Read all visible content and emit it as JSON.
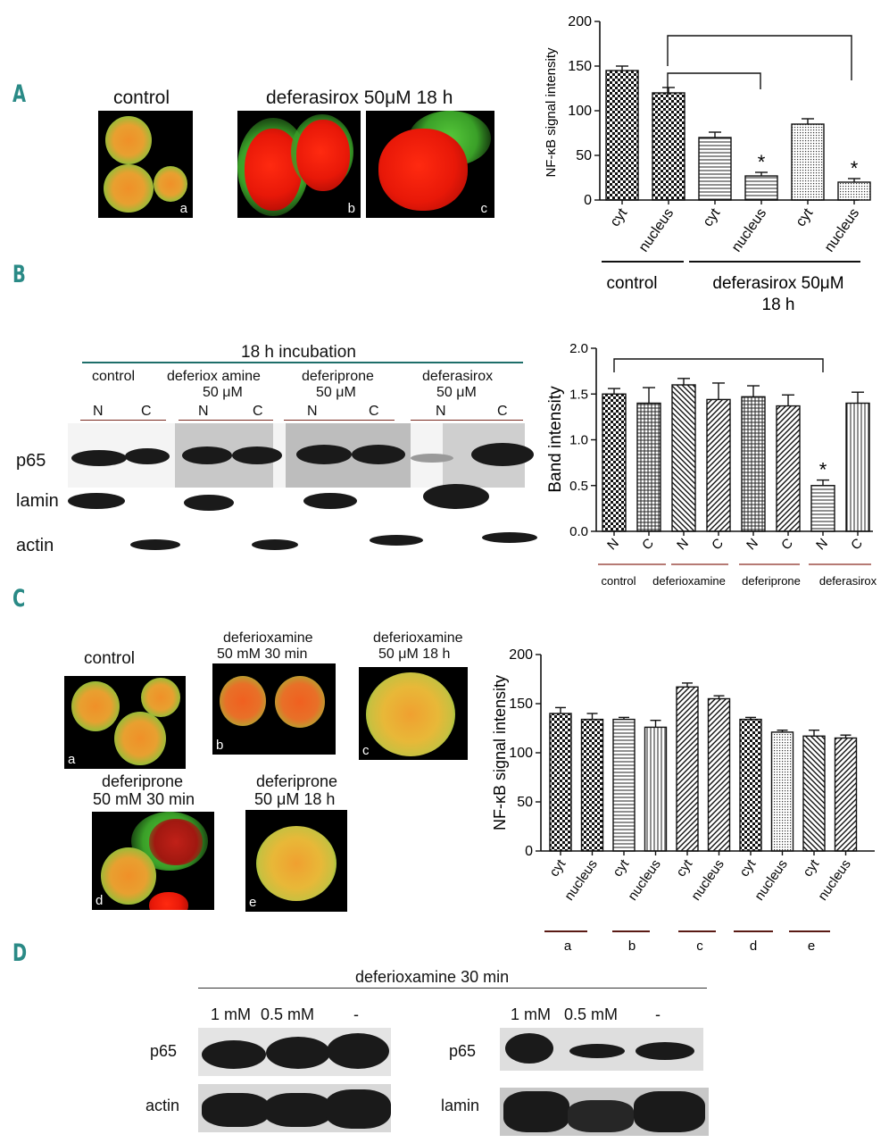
{
  "panels": {
    "a": "A",
    "b": "B",
    "c": "C",
    "d": "D"
  },
  "A": {
    "control_title": "control",
    "treat_title": "deferasirox 50μM 18 h",
    "letters": [
      "a",
      "b",
      "c"
    ],
    "group_control": "control",
    "group_treat_line1": "deferasirox 50μM",
    "group_treat_line2": "18 h"
  },
  "B": {
    "header": "18 h incubation",
    "groups": [
      {
        "line1": "control",
        "line2": ""
      },
      {
        "line1": "deferiox amine",
        "line2": "50 μM"
      },
      {
        "line1": "deferiprone",
        "line2": "50 μM"
      },
      {
        "line1": "deferasirox",
        "line2": "50 μM"
      }
    ],
    "lanes": [
      "N",
      "C",
      "N",
      "C",
      "N",
      "C",
      "N",
      "C"
    ],
    "rows": [
      "p65",
      "lamin",
      "actin"
    ],
    "group_labels": [
      "control",
      "deferioxamine",
      "deferiprone",
      "deferasirox"
    ]
  },
  "C": {
    "titles": {
      "a": {
        "line1": "control",
        "line2": ""
      },
      "b": {
        "line1": "deferioxamine",
        "line2": "50 mM 30 min"
      },
      "c": {
        "line1": "deferioxamine",
        "line2": "50 μM 18 h"
      },
      "d": {
        "line1": "deferiprone",
        "line2": "50 mM 30 min"
      },
      "e": {
        "line1": "deferiprone",
        "line2": "50 μM 18 h"
      }
    },
    "letters": [
      "a",
      "b",
      "c",
      "d",
      "e"
    ]
  },
  "D": {
    "header": "deferioxamine 30 min",
    "left_lanes": [
      "1 mM",
      "0.5 mM",
      "-"
    ],
    "right_lanes": [
      "1 mM",
      "0.5 mM",
      "-"
    ],
    "left_rows": [
      "p65",
      "actin"
    ],
    "right_rows": [
      "p65",
      "lamin"
    ]
  },
  "chart_data": [
    {
      "id": "A",
      "type": "bar",
      "title": "",
      "ylabel": "NF-κB signal intensity",
      "xlabel": "",
      "categories": [
        "cyt",
        "nucleus",
        "cyt",
        "nucleus",
        "cyt",
        "nucleus"
      ],
      "values": [
        145,
        120,
        70,
        27,
        85,
        20
      ],
      "errors": [
        5,
        6,
        6,
        4,
        6,
        4
      ],
      "significance": [
        "",
        "",
        "",
        "*",
        "",
        "*"
      ],
      "ylim": [
        0,
        200
      ],
      "yticks": [
        "0",
        "50",
        "100",
        "150",
        "200"
      ],
      "groups": [
        "control",
        "deferasirox 50μM 18 h"
      ]
    },
    {
      "id": "B",
      "type": "bar",
      "title": "",
      "ylabel": "Band intensity",
      "xlabel": "",
      "categories": [
        "N",
        "C",
        "N",
        "C",
        "N",
        "C",
        "N",
        "C"
      ],
      "values": [
        1.5,
        1.4,
        1.6,
        1.44,
        1.47,
        1.37,
        0.5,
        1.4
      ],
      "errors": [
        0.06,
        0.17,
        0.07,
        0.18,
        0.12,
        0.12,
        0.06,
        0.12
      ],
      "significance": [
        "",
        "",
        "",
        "",
        "",
        "",
        "*",
        ""
      ],
      "ylim": [
        0,
        2.0
      ],
      "yticks": [
        "0.0",
        "0.5",
        "1.0",
        "1.5",
        "2.0"
      ],
      "groups": [
        "control",
        "deferioxamine",
        "deferiprone",
        "deferasirox"
      ]
    },
    {
      "id": "C",
      "type": "bar",
      "title": "",
      "ylabel": "NF-κB signal intensity",
      "xlabel": "",
      "categories": [
        "cyt",
        "nucleus",
        "cyt",
        "nucleus",
        "cyt",
        "nucleus",
        "cyt",
        "nucleus",
        "cyt",
        "nucleus"
      ],
      "values": [
        140,
        134,
        134,
        126,
        167,
        155,
        134,
        121,
        117,
        115
      ],
      "errors": [
        6,
        6,
        2,
        7,
        4,
        3,
        2,
        2,
        6,
        3
      ],
      "ylim": [
        0,
        200
      ],
      "yticks": [
        "0",
        "50",
        "100",
        "150",
        "200"
      ],
      "groups": [
        "a",
        "b",
        "c",
        "d",
        "e"
      ]
    }
  ]
}
